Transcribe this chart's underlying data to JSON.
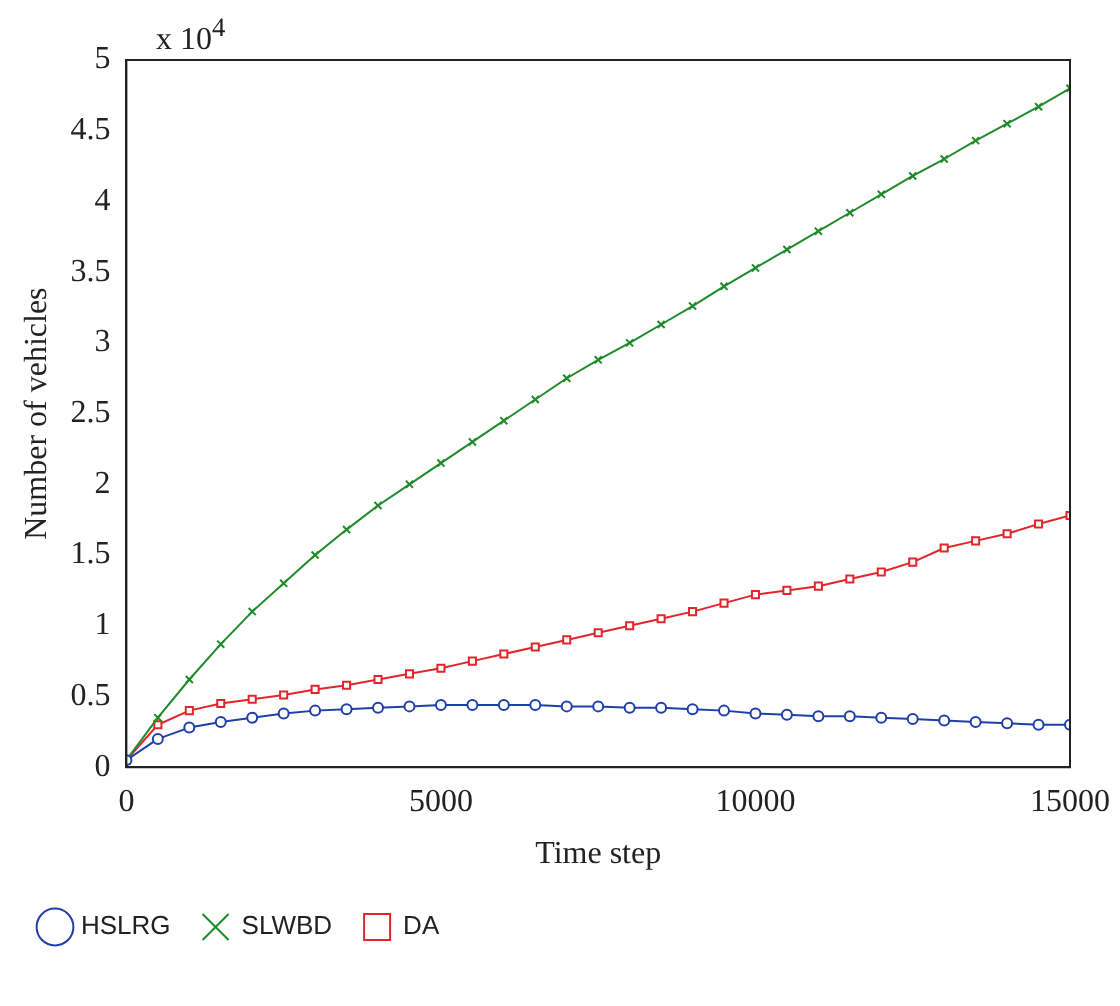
{
  "chart_data": {
    "type": "line",
    "xlabel": "Time step",
    "ylabel": "Number of vehicles",
    "annotations": [
      "x 10$^{4}$"
    ],
    "x": [
      0,
      500,
      1000,
      1500,
      2000,
      2500,
      3000,
      3500,
      4000,
      4500,
      5000,
      5500,
      6000,
      6500,
      7000,
      7500,
      8000,
      8500,
      9000,
      9500,
      10000,
      10500,
      11000,
      11500,
      12000,
      12500,
      13000,
      13500,
      14000,
      14500,
      15000
    ],
    "xlim": [
      0,
      15000
    ],
    "xticks": [
      0,
      5000,
      10000,
      15000
    ],
    "ylim": [
      0,
      5
    ],
    "yticks": [
      0,
      0.5,
      1,
      1.5,
      2,
      2.5,
      3,
      3.5,
      4,
      4.5,
      5
    ],
    "grid": false,
    "legend": "bottom",
    "line_style": "solid",
    "series": [
      {
        "name": "HSLRG",
        "color": "#1f3fa8",
        "marker": "circle",
        "values": [
          0.05,
          0.2,
          0.28,
          0.32,
          0.35,
          0.38,
          0.4,
          0.41,
          0.42,
          0.43,
          0.44,
          0.44,
          0.44,
          0.44,
          0.43,
          0.43,
          0.42,
          0.42,
          0.41,
          0.4,
          0.38,
          0.37,
          0.36,
          0.36,
          0.35,
          0.34,
          0.33,
          0.32,
          0.31,
          0.3,
          0.3
        ]
      },
      {
        "name": "SLWBD",
        "color": "#1f8a2a",
        "marker": "cross",
        "values": [
          0.05,
          0.35,
          0.62,
          0.87,
          1.1,
          1.3,
          1.5,
          1.68,
          1.85,
          2.0,
          2.15,
          2.3,
          2.45,
          2.6,
          2.75,
          2.88,
          3.0,
          3.13,
          3.26,
          3.4,
          3.53,
          3.66,
          3.79,
          3.92,
          4.05,
          4.18,
          4.3,
          4.43,
          4.55,
          4.67,
          4.8
        ]
      },
      {
        "name": "DA",
        "color": "#e0262b",
        "marker": "square",
        "values": [
          0.05,
          0.3,
          0.4,
          0.45,
          0.48,
          0.51,
          0.55,
          0.58,
          0.62,
          0.66,
          0.7,
          0.75,
          0.8,
          0.85,
          0.9,
          0.95,
          1.0,
          1.05,
          1.1,
          1.16,
          1.22,
          1.25,
          1.28,
          1.33,
          1.38,
          1.45,
          1.55,
          1.6,
          1.65,
          1.72,
          1.78
        ]
      }
    ]
  }
}
